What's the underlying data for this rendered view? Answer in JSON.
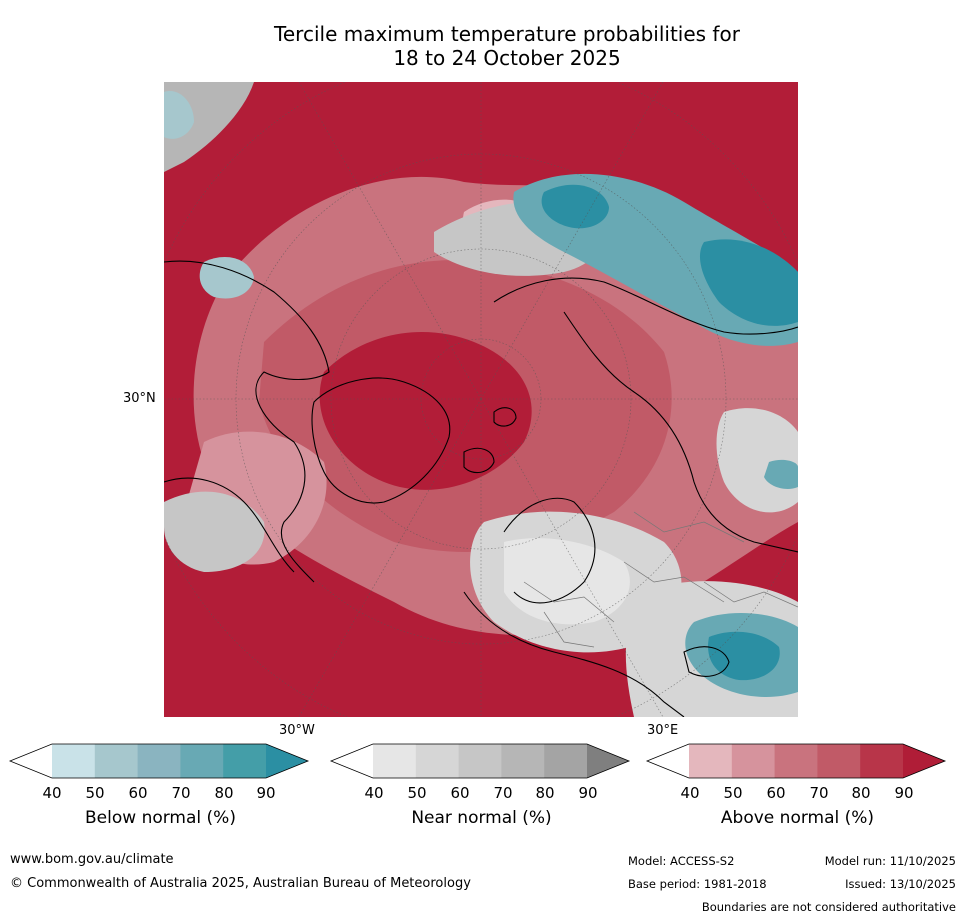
{
  "title": {
    "line1": "Tercile maximum temperature probabilities for",
    "line2": "18 to 24 October 2025"
  },
  "map": {
    "lat_label": "30°N",
    "lon_label_left": "30°W",
    "lon_label_right": "30°E"
  },
  "colorbars": [
    {
      "title": "Below normal (%)",
      "ticks": [
        "40",
        "50",
        "60",
        "70",
        "80",
        "90"
      ],
      "colors": [
        "#ffffff",
        "#c9e2e8",
        "#a6c7cd",
        "#8ab4c0",
        "#68a9b4",
        "#449ea8",
        "#2b8fa3"
      ]
    },
    {
      "title": "Near normal (%)",
      "ticks": [
        "40",
        "50",
        "60",
        "70",
        "80",
        "90"
      ],
      "colors": [
        "#ffffff",
        "#e6e6e6",
        "#d6d6d6",
        "#c6c6c6",
        "#b6b6b6",
        "#a4a4a4",
        "#7f7f7f"
      ]
    },
    {
      "title": "Above normal (%)",
      "ticks": [
        "40",
        "50",
        "60",
        "70",
        "80",
        "90"
      ],
      "colors": [
        "#ffffff",
        "#e4b7bd",
        "#d6939d",
        "#c9737e",
        "#c15a67",
        "#b83549",
        "#b01d37"
      ]
    }
  ],
  "footer": {
    "website": "www.bom.gov.au/climate",
    "copyright": "© Commonwealth of Australia 2025, Australian Bureau of Meteorology",
    "model": "Model: ACCESS-S2",
    "base_period": "Base period: 1981-2018",
    "model_run": "Model run: 11/10/2025",
    "issued": "Issued: 13/10/2025",
    "disclaimer": "Boundaries are not considered authoritative"
  }
}
